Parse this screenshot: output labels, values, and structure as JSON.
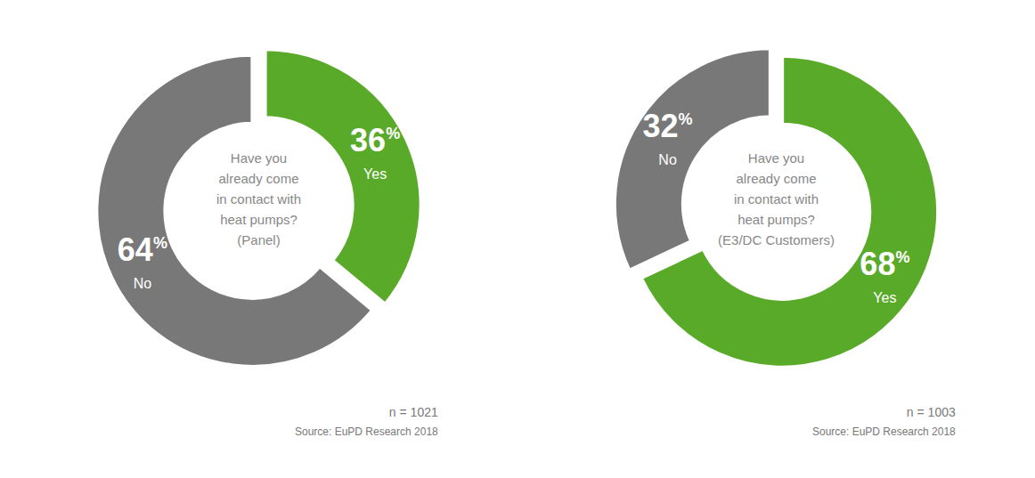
{
  "chart_data": [
    {
      "type": "pie",
      "title": "Have you\nalready come\nin contact with\nheat pumps?\n(Panel)",
      "categories": [
        "Yes",
        "No"
      ],
      "values": [
        36,
        64
      ],
      "value_labels": [
        "36%",
        "64%"
      ],
      "colors": [
        "#5aaa2a",
        "#787878"
      ],
      "data_labels": true,
      "annotations": [
        "n = 1021",
        "Source: EuPD Research 2018"
      ]
    },
    {
      "type": "pie",
      "title": "Have you\nalready come\nin contact with\nheat pumps?\n(E3/DC Customers)",
      "categories": [
        "Yes",
        "No"
      ],
      "values": [
        68,
        32
      ],
      "value_labels": [
        "68%",
        "32%"
      ],
      "colors": [
        "#5aaa2a",
        "#787878"
      ],
      "data_labels": true,
      "annotations": [
        "n = 1003",
        "Source: EuPD Research 2018"
      ]
    }
  ]
}
